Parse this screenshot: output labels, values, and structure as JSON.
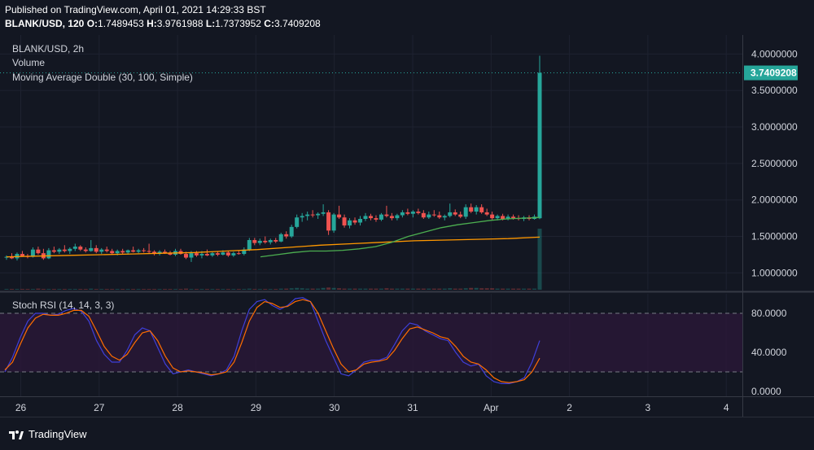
{
  "header": {
    "published": "Published on TradingView.com, April 01, 2021 14:29:33 BST",
    "symbol_interval": "BLANK/USD, 120",
    "o_label": "O:",
    "o_value": "1.7489453",
    "h_label": "H:",
    "h_value": "3.9761988",
    "l_label": "L:",
    "l_value": "1.7373952",
    "c_label": "C:",
    "c_value": "3.7409208"
  },
  "legend": {
    "title": "BLANK/USD, 2h",
    "volume": "Volume",
    "ma": "Moving Average Double (30, 100, Simple)",
    "rsi": "Stoch RSI (14, 14, 3, 3)"
  },
  "footer": {
    "brand": "TradingView",
    "logo_icon": "tradingview-logo-icon"
  },
  "colors": {
    "background": "#131722",
    "grid": "#1e2230",
    "up": "#26a69a",
    "down": "#ef5350",
    "ma_fast": "#4caf50",
    "ma_slow": "#ff9800",
    "rsi_k": "#3f3fd8",
    "rsi_d": "#ff6d00",
    "rsi_band": "#2a1838",
    "axis_text": "#d1d4dc",
    "price_tag": "#26a69a"
  },
  "chart_data": [
    {
      "type": "candlestick",
      "title": "BLANK/USD, 2h",
      "x_ticks": [
        "26",
        "27",
        "28",
        "29",
        "30",
        "31",
        "Apr",
        "2",
        "3",
        "4"
      ],
      "y_ticks": [
        "1.0000000",
        "1.5000000",
        "2.0000000",
        "2.5000000",
        "3.0000000",
        "3.5000000",
        "4.0000000"
      ],
      "ylim": [
        0.77,
        4.26
      ],
      "last_price_label": "3.7409208",
      "last_price": 3.7409208,
      "candles_ohlc": [
        [
          1.21,
          1.24,
          1.18,
          1.22
        ],
        [
          1.22,
          1.27,
          1.19,
          1.2
        ],
        [
          1.2,
          1.28,
          1.17,
          1.26
        ],
        [
          1.26,
          1.3,
          1.22,
          1.23
        ],
        [
          1.23,
          1.26,
          1.2,
          1.22
        ],
        [
          1.22,
          1.35,
          1.21,
          1.32
        ],
        [
          1.32,
          1.36,
          1.25,
          1.27
        ],
        [
          1.27,
          1.33,
          1.18,
          1.2
        ],
        [
          1.2,
          1.34,
          1.19,
          1.31
        ],
        [
          1.31,
          1.36,
          1.27,
          1.29
        ],
        [
          1.29,
          1.34,
          1.26,
          1.32
        ],
        [
          1.32,
          1.38,
          1.28,
          1.3
        ],
        [
          1.3,
          1.35,
          1.26,
          1.33
        ],
        [
          1.33,
          1.4,
          1.3,
          1.36
        ],
        [
          1.36,
          1.38,
          1.3,
          1.32
        ],
        [
          1.32,
          1.35,
          1.28,
          1.3
        ],
        [
          1.3,
          1.45,
          1.29,
          1.34
        ],
        [
          1.34,
          1.38,
          1.27,
          1.29
        ],
        [
          1.29,
          1.34,
          1.26,
          1.32
        ],
        [
          1.32,
          1.36,
          1.28,
          1.3
        ],
        [
          1.3,
          1.33,
          1.25,
          1.27
        ],
        [
          1.27,
          1.32,
          1.24,
          1.3
        ],
        [
          1.3,
          1.33,
          1.26,
          1.28
        ],
        [
          1.28,
          1.32,
          1.25,
          1.31
        ],
        [
          1.31,
          1.36,
          1.28,
          1.29
        ],
        [
          1.29,
          1.33,
          1.27,
          1.31
        ],
        [
          1.31,
          1.34,
          1.28,
          1.3
        ],
        [
          1.3,
          1.4,
          1.27,
          1.29
        ],
        [
          1.29,
          1.31,
          1.24,
          1.26
        ],
        [
          1.26,
          1.31,
          1.24,
          1.29
        ],
        [
          1.29,
          1.32,
          1.26,
          1.27
        ],
        [
          1.27,
          1.3,
          1.24,
          1.25
        ],
        [
          1.25,
          1.33,
          1.23,
          1.3
        ],
        [
          1.3,
          1.33,
          1.25,
          1.26
        ],
        [
          1.26,
          1.29,
          1.19,
          1.21
        ],
        [
          1.21,
          1.3,
          1.15,
          1.27
        ],
        [
          1.27,
          1.3,
          1.22,
          1.24
        ],
        [
          1.24,
          1.3,
          1.2,
          1.26
        ],
        [
          1.26,
          1.32,
          1.23,
          1.24
        ],
        [
          1.24,
          1.29,
          1.22,
          1.27
        ],
        [
          1.27,
          1.3,
          1.23,
          1.25
        ],
        [
          1.25,
          1.31,
          1.24,
          1.28
        ],
        [
          1.28,
          1.3,
          1.22,
          1.24
        ],
        [
          1.24,
          1.29,
          1.22,
          1.27
        ],
        [
          1.27,
          1.3,
          1.25,
          1.26
        ],
        [
          1.26,
          1.35,
          1.24,
          1.32
        ],
        [
          1.32,
          1.48,
          1.3,
          1.45
        ],
        [
          1.45,
          1.48,
          1.38,
          1.41
        ],
        [
          1.41,
          1.47,
          1.38,
          1.44
        ],
        [
          1.44,
          1.5,
          1.4,
          1.42
        ],
        [
          1.42,
          1.47,
          1.39,
          1.45
        ],
        [
          1.45,
          1.48,
          1.41,
          1.43
        ],
        [
          1.43,
          1.55,
          1.42,
          1.53
        ],
        [
          1.53,
          1.57,
          1.47,
          1.5
        ],
        [
          1.5,
          1.66,
          1.48,
          1.63
        ],
        [
          1.63,
          1.8,
          1.61,
          1.76
        ],
        [
          1.76,
          1.82,
          1.7,
          1.78
        ],
        [
          1.78,
          1.84,
          1.72,
          1.8
        ],
        [
          1.8,
          1.86,
          1.76,
          1.79
        ],
        [
          1.79,
          1.83,
          1.74,
          1.81
        ],
        [
          1.81,
          1.94,
          1.78,
          1.83
        ],
        [
          1.83,
          1.86,
          1.52,
          1.58
        ],
        [
          1.58,
          1.82,
          1.55,
          1.8
        ],
        [
          1.8,
          1.92,
          1.74,
          1.76
        ],
        [
          1.76,
          1.8,
          1.62,
          1.65
        ],
        [
          1.65,
          1.75,
          1.61,
          1.72
        ],
        [
          1.72,
          1.76,
          1.66,
          1.69
        ],
        [
          1.69,
          1.78,
          1.65,
          1.74
        ],
        [
          1.74,
          1.82,
          1.71,
          1.78
        ],
        [
          1.78,
          1.81,
          1.72,
          1.75
        ],
        [
          1.75,
          1.79,
          1.7,
          1.73
        ],
        [
          1.73,
          1.82,
          1.71,
          1.8
        ],
        [
          1.8,
          1.92,
          1.76,
          1.78
        ],
        [
          1.78,
          1.82,
          1.72,
          1.75
        ],
        [
          1.75,
          1.81,
          1.72,
          1.79
        ],
        [
          1.79,
          1.86,
          1.76,
          1.83
        ],
        [
          1.83,
          1.88,
          1.79,
          1.81
        ],
        [
          1.81,
          1.86,
          1.76,
          1.84
        ],
        [
          1.84,
          1.88,
          1.8,
          1.82
        ],
        [
          1.82,
          1.86,
          1.74,
          1.76
        ],
        [
          1.76,
          1.84,
          1.74,
          1.8
        ],
        [
          1.8,
          1.86,
          1.77,
          1.79
        ],
        [
          1.79,
          1.84,
          1.74,
          1.76
        ],
        [
          1.76,
          1.8,
          1.72,
          1.78
        ],
        [
          1.78,
          1.95,
          1.76,
          1.83
        ],
        [
          1.83,
          1.87,
          1.78,
          1.8
        ],
        [
          1.8,
          1.84,
          1.75,
          1.77
        ],
        [
          1.77,
          1.94,
          1.74,
          1.9
        ],
        [
          1.9,
          1.95,
          1.82,
          1.84
        ],
        [
          1.84,
          1.93,
          1.8,
          1.9
        ],
        [
          1.9,
          1.94,
          1.81,
          1.83
        ],
        [
          1.83,
          1.88,
          1.78,
          1.8
        ],
        [
          1.8,
          1.84,
          1.73,
          1.75
        ],
        [
          1.75,
          1.8,
          1.72,
          1.78
        ],
        [
          1.78,
          1.81,
          1.72,
          1.74
        ],
        [
          1.74,
          1.8,
          1.72,
          1.77
        ],
        [
          1.77,
          1.8,
          1.73,
          1.75
        ],
        [
          1.75,
          1.79,
          1.72,
          1.74
        ],
        [
          1.74,
          1.78,
          1.71,
          1.76
        ],
        [
          1.76,
          1.79,
          1.72,
          1.74
        ],
        [
          1.74,
          1.8,
          1.73,
          1.77
        ],
        [
          1.7489453,
          3.9761988,
          1.7373952,
          3.7409208
        ]
      ],
      "ma_fast": [
        1.22,
        1.25,
        1.28,
        1.3,
        1.3,
        1.31,
        1.33,
        1.36,
        1.42,
        1.5,
        1.56,
        1.62,
        1.66,
        1.69,
        1.72,
        1.74,
        1.75,
        1.76
      ],
      "ma_slow": [
        1.22,
        1.23,
        1.24,
        1.25,
        1.26,
        1.27,
        1.28,
        1.3,
        1.32,
        1.35,
        1.38,
        1.4,
        1.42,
        1.44,
        1.45,
        1.46,
        1.47,
        1.49
      ],
      "volume_max": 1.68,
      "volume": [
        0.02,
        0.02,
        0.02,
        0.02,
        0.02,
        0.02,
        0.03,
        0.02,
        0.02,
        0.02,
        0.02,
        0.02,
        0.02,
        0.02,
        0.02,
        0.02,
        0.03,
        0.02,
        0.02,
        0.02,
        0.02,
        0.02,
        0.02,
        0.02,
        0.02,
        0.02,
        0.02,
        0.02,
        0.02,
        0.02,
        0.02,
        0.02,
        0.02,
        0.02,
        0.03,
        0.02,
        0.02,
        0.02,
        0.02,
        0.02,
        0.02,
        0.02,
        0.02,
        0.02,
        0.02,
        0.02,
        0.03,
        0.02,
        0.02,
        0.02,
        0.02,
        0.02,
        0.03,
        0.03,
        0.04,
        0.05,
        0.04,
        0.03,
        0.03,
        0.03,
        0.05,
        0.06,
        0.05,
        0.04,
        0.03,
        0.03,
        0.03,
        0.03,
        0.03,
        0.03,
        0.03,
        0.03,
        0.04,
        0.03,
        0.03,
        0.03,
        0.03,
        0.03,
        0.03,
        0.03,
        0.03,
        0.03,
        0.03,
        0.03,
        0.04,
        0.03,
        0.03,
        0.04,
        0.05,
        0.05,
        0.04,
        0.04,
        0.04,
        0.03,
        0.03,
        0.03,
        0.03,
        0.03,
        0.03,
        0.03,
        0.03,
        1.68
      ]
    },
    {
      "type": "line",
      "title": "Stoch RSI (14, 14, 3, 3)",
      "y_ticks": [
        "0.0000",
        "40.0000",
        "80.0000"
      ],
      "ylim": [
        -5,
        100
      ],
      "bands": [
        20,
        80
      ],
      "series": [
        {
          "values": [
            20,
            35,
            55,
            72,
            80,
            80,
            78,
            79,
            83,
            85,
            82,
            72,
            52,
            38,
            30,
            30,
            42,
            58,
            65,
            62,
            45,
            28,
            18,
            20,
            22,
            20,
            18,
            16,
            18,
            22,
            36,
            62,
            84,
            92,
            94,
            88,
            84,
            88,
            95,
            96,
            92,
            72,
            52,
            35,
            18,
            16,
            22,
            30,
            32,
            32,
            35,
            48,
            62,
            70,
            68,
            62,
            58,
            54,
            52,
            40,
            30,
            26,
            28,
            16,
            10,
            8,
            8,
            10,
            14,
            30,
            52
          ]
        },
        {
          "values": [
            22,
            30,
            48,
            65,
            75,
            79,
            78,
            78,
            80,
            83,
            83,
            77,
            62,
            46,
            36,
            32,
            38,
            50,
            60,
            62,
            52,
            36,
            24,
            20,
            21,
            20,
            19,
            17,
            18,
            20,
            30,
            50,
            72,
            86,
            92,
            90,
            86,
            87,
            92,
            94,
            92,
            80,
            62,
            44,
            28,
            20,
            22,
            28,
            30,
            31,
            33,
            42,
            54,
            64,
            66,
            63,
            60,
            56,
            54,
            46,
            36,
            30,
            28,
            22,
            14,
            10,
            9,
            10,
            12,
            20,
            34
          ]
        }
      ]
    }
  ]
}
